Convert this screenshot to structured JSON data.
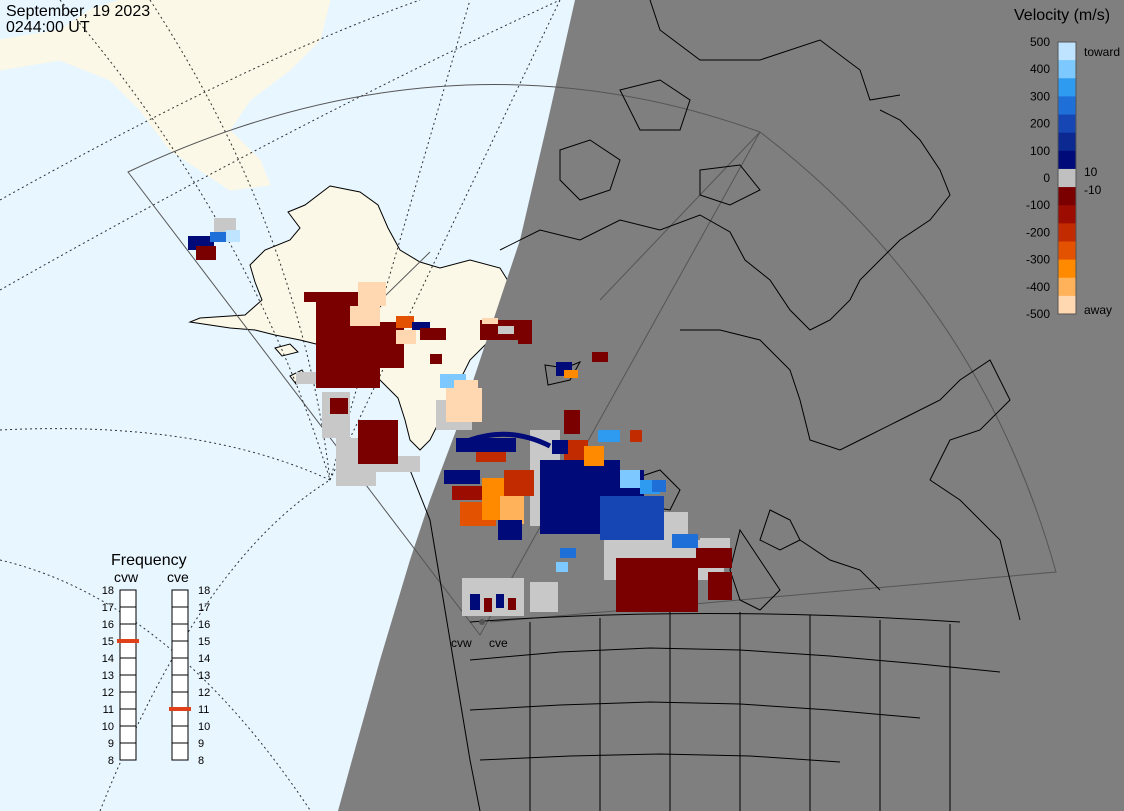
{
  "header": {
    "date": "September, 19 2023",
    "time": "0244:00 UT"
  },
  "colorbar": {
    "title": "Velocity (m/s)",
    "toward_label": "toward",
    "away_label": "away",
    "ticks": [
      "500",
      "400",
      "300",
      "200",
      "100",
      "0",
      "-100",
      "-200",
      "-300",
      "-400",
      "-500"
    ],
    "near_zero_labels": [
      "10",
      "-10"
    ],
    "colors": [
      "#bfe4ff",
      "#7cc8ff",
      "#2f9bf0",
      "#1f6fd8",
      "#1546b3",
      "#0c2891",
      "#000a78",
      "#c0c0c0",
      "#7a0000",
      "#9c0c00",
      "#c22a00",
      "#e35200",
      "#ff8a00",
      "#ffb25a",
      "#ffd7b0"
    ]
  },
  "frequency": {
    "title": "Frequency",
    "radar_labels": [
      "cvw",
      "cve"
    ],
    "scale": [
      "18",
      "17",
      "16",
      "15",
      "14",
      "13",
      "12",
      "11",
      "10",
      "9",
      "8"
    ],
    "cvw_value": 15,
    "cve_value": 11,
    "marker_color": "#e0401a"
  },
  "map": {
    "station_labels": [
      "cvw",
      "cve"
    ],
    "day_ocean_color": "#e8f6ff",
    "day_land_color": "#fbf8e8",
    "night_color": "#7f7f7f",
    "ground_scatter_color": "#c8c8c8"
  }
}
